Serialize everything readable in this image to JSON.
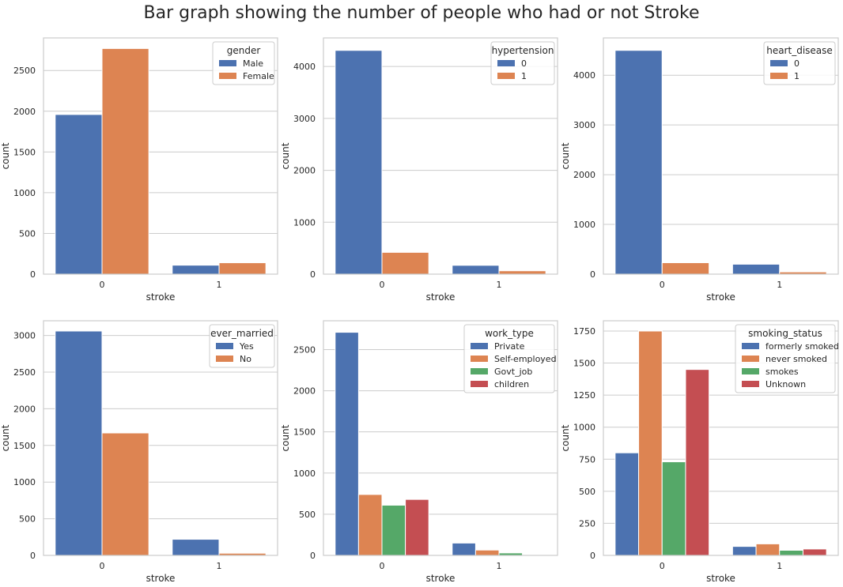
{
  "title": "Bar graph showing the number of people who had or not Stroke",
  "colors": [
    "#4c72b0",
    "#dd8452",
    "#55a868",
    "#c44e52"
  ],
  "chart_data": [
    {
      "type": "bar",
      "categories": [
        "0",
        "1"
      ],
      "xlabel": "stroke",
      "ylabel": "count",
      "ylim": [
        0,
        2900
      ],
      "yticks": [
        0,
        500,
        1000,
        1500,
        2000,
        2500
      ],
      "grid": true,
      "legend_title": "gender",
      "legend_position": "top-right",
      "series": [
        {
          "name": "Male",
          "values": [
            1960,
            110
          ]
        },
        {
          "name": "Female",
          "values": [
            2770,
            140
          ]
        }
      ]
    },
    {
      "type": "bar",
      "categories": [
        "0",
        "1"
      ],
      "xlabel": "stroke",
      "ylabel": "count",
      "ylim": [
        0,
        4550
      ],
      "yticks": [
        0,
        1000,
        2000,
        3000,
        4000
      ],
      "grid": true,
      "legend_title": "hypertension",
      "legend_position": "top-right",
      "series": [
        {
          "name": "0",
          "values": [
            4310,
            170
          ]
        },
        {
          "name": "1",
          "values": [
            420,
            65
          ]
        }
      ]
    },
    {
      "type": "bar",
      "categories": [
        "0",
        "1"
      ],
      "xlabel": "stroke",
      "ylabel": "count",
      "ylim": [
        0,
        4750
      ],
      "yticks": [
        0,
        1000,
        2000,
        3000,
        4000
      ],
      "grid": true,
      "legend_title": "heart_disease",
      "legend_position": "top-right",
      "series": [
        {
          "name": "0",
          "values": [
            4500,
            200
          ]
        },
        {
          "name": "1",
          "values": [
            230,
            45
          ]
        }
      ]
    },
    {
      "type": "bar",
      "categories": [
        "0",
        "1"
      ],
      "xlabel": "stroke",
      "ylabel": "count",
      "ylim": [
        0,
        3200
      ],
      "yticks": [
        0,
        500,
        1000,
        1500,
        2000,
        2500,
        3000
      ],
      "grid": true,
      "legend_title": "ever_married",
      "legend_position": "top-right",
      "series": [
        {
          "name": "Yes",
          "values": [
            3060,
            220
          ]
        },
        {
          "name": "No",
          "values": [
            1670,
            30
          ]
        }
      ]
    },
    {
      "type": "bar",
      "categories": [
        "0",
        "1"
      ],
      "xlabel": "stroke",
      "ylabel": "count",
      "ylim": [
        0,
        2850
      ],
      "yticks": [
        0,
        500,
        1000,
        1500,
        2000,
        2500
      ],
      "grid": true,
      "legend_title": "work_type",
      "legend_position": "top-right",
      "series": [
        {
          "name": "Private",
          "values": [
            2710,
            150
          ]
        },
        {
          "name": "Self-employed",
          "values": [
            740,
            65
          ]
        },
        {
          "name": "Govt_job",
          "values": [
            610,
            30
          ]
        },
        {
          "name": "children",
          "values": [
            680,
            2
          ]
        }
      ]
    },
    {
      "type": "bar",
      "categories": [
        "0",
        "1"
      ],
      "xlabel": "stroke",
      "ylabel": "count",
      "ylim": [
        0,
        1830
      ],
      "yticks": [
        0,
        250,
        500,
        750,
        1000,
        1250,
        1500,
        1750
      ],
      "grid": true,
      "legend_title": "smoking_status",
      "legend_position": "top-right",
      "series": [
        {
          "name": "formerly smoked",
          "values": [
            800,
            70
          ]
        },
        {
          "name": "never smoked",
          "values": [
            1750,
            90
          ]
        },
        {
          "name": "smokes",
          "values": [
            730,
            40
          ]
        },
        {
          "name": "Unknown",
          "values": [
            1450,
            50
          ]
        }
      ]
    }
  ]
}
